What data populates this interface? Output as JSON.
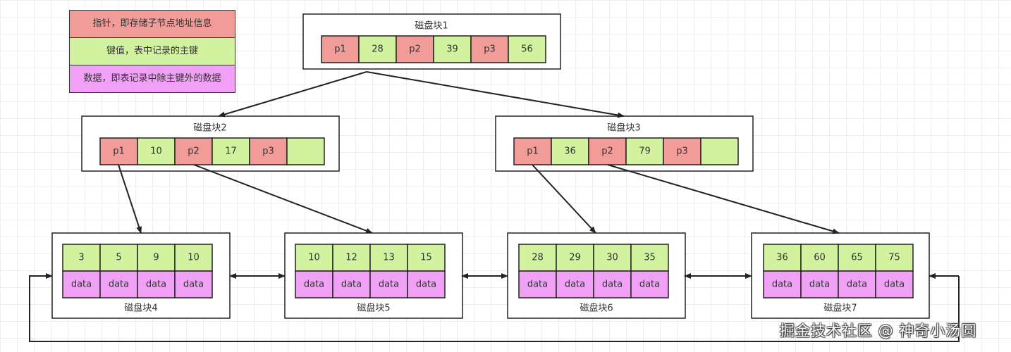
{
  "colors": {
    "pointer": "#f19c99",
    "key": "#d3f2a0",
    "data": "#f0a0f5",
    "stroke": "#222222"
  },
  "legend": [
    {
      "label": "指针，即存储子节点地址信息",
      "kind": "pointer"
    },
    {
      "label": "键值，表中记录的主键",
      "kind": "key"
    },
    {
      "label": "数据，即表记录中除主键外的数据",
      "kind": "data"
    }
  ],
  "internal_blocks": [
    {
      "title": "磁盘块1",
      "cells": [
        {
          "t": "p1",
          "k": "pointer"
        },
        {
          "t": "28",
          "k": "key"
        },
        {
          "t": "p2",
          "k": "pointer"
        },
        {
          "t": "39",
          "k": "key"
        },
        {
          "t": "p3",
          "k": "pointer"
        },
        {
          "t": "56",
          "k": "key"
        }
      ]
    },
    {
      "title": "磁盘块2",
      "cells": [
        {
          "t": "p1",
          "k": "pointer"
        },
        {
          "t": "10",
          "k": "key"
        },
        {
          "t": "p2",
          "k": "pointer"
        },
        {
          "t": "17",
          "k": "key"
        },
        {
          "t": "p3",
          "k": "pointer"
        },
        {
          "t": "",
          "k": "key"
        }
      ]
    },
    {
      "title": "磁盘块3",
      "cells": [
        {
          "t": "p1",
          "k": "pointer"
        },
        {
          "t": "36",
          "k": "key"
        },
        {
          "t": "p2",
          "k": "pointer"
        },
        {
          "t": "79",
          "k": "key"
        },
        {
          "t": "p3",
          "k": "pointer"
        },
        {
          "t": "",
          "k": "key"
        }
      ]
    }
  ],
  "leaf_blocks": [
    {
      "title": "磁盘块4",
      "keys": [
        "3",
        "5",
        "9",
        "10"
      ],
      "data": [
        "data",
        "data",
        "data",
        "data"
      ]
    },
    {
      "title": "磁盘块5",
      "keys": [
        "10",
        "12",
        "13",
        "15"
      ],
      "data": [
        "data",
        "data",
        "data",
        "data"
      ]
    },
    {
      "title": "磁盘块6",
      "keys": [
        "28",
        "29",
        "30",
        "35"
      ],
      "data": [
        "data",
        "data",
        "data",
        "data"
      ]
    },
    {
      "title": "磁盘块7",
      "keys": [
        "36",
        "60",
        "65",
        "75"
      ],
      "data": [
        "data",
        "data",
        "data",
        "data"
      ]
    }
  ],
  "watermark": "掘金技术社区 @ 神奇小汤圆"
}
